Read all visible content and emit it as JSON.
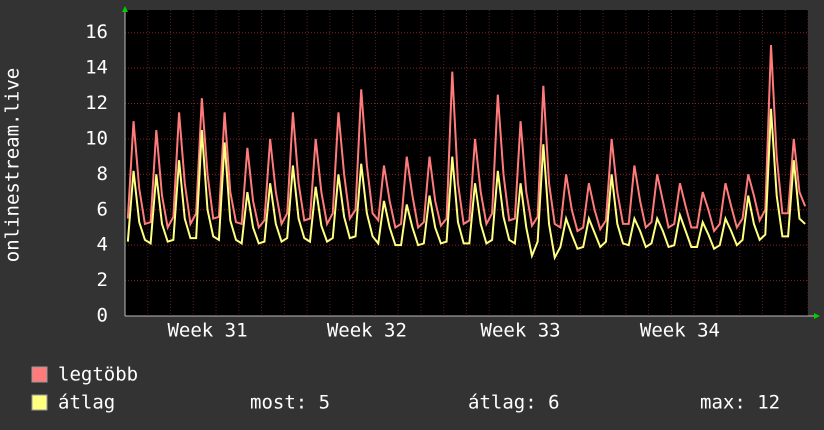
{
  "chart_data": {
    "type": "line",
    "y_label": "onlinestream.live",
    "categories": [
      null,
      null,
      null,
      null,
      null,
      null,
      null,
      null,
      null,
      null,
      null,
      null,
      null,
      null,
      "Week 31",
      null,
      null,
      null,
      null,
      null,
      null,
      null,
      null,
      null,
      null,
      null,
      null,
      null,
      null,
      null,
      null,
      null,
      null,
      null,
      null,
      null,
      null,
      null,
      null,
      null,
      null,
      null,
      "Week 32",
      null,
      null,
      null,
      null,
      null,
      null,
      null,
      null,
      null,
      null,
      null,
      null,
      null,
      null,
      null,
      null,
      null,
      null,
      null,
      null,
      null,
      null,
      null,
      null,
      null,
      null,
      "Week 33",
      null,
      null,
      null,
      null,
      null,
      null,
      null,
      null,
      null,
      null,
      null,
      null,
      null,
      null,
      null,
      null,
      null,
      null,
      null,
      null,
      null,
      null,
      null,
      null,
      null,
      null,
      null,
      "Week 34",
      null,
      null,
      null,
      null,
      null,
      null,
      null,
      null,
      null,
      null,
      null,
      null,
      null,
      null,
      null,
      null,
      null,
      null,
      null,
      null,
      null,
      null
    ],
    "series": [
      {
        "name": "legtöbb",
        "color": "#ff7b7b",
        "values": [
          5.5,
          11,
          7.2,
          5.2,
          5.3,
          10.5,
          6.8,
          5.0,
          5.6,
          11.5,
          7.5,
          5.2,
          5.8,
          12.3,
          8,
          5.5,
          5.6,
          11.5,
          7,
          5.3,
          5.2,
          9.5,
          6.5,
          5,
          5.4,
          10,
          7,
          5.2,
          5.8,
          11.5,
          7.5,
          5.4,
          5.5,
          10,
          7,
          5.2,
          5.8,
          11.5,
          8,
          5.5,
          6,
          12.8,
          8.5,
          5.8,
          5.4,
          8.5,
          6.5,
          5,
          5.2,
          9,
          6.8,
          5,
          5.3,
          9,
          6.5,
          5.1,
          5.5,
          13.8,
          7.5,
          5.2,
          5.4,
          10,
          7,
          5.2,
          5.8,
          12.5,
          8,
          5.4,
          5.5,
          11,
          7,
          5.1,
          5.6,
          13,
          7.5,
          5.2,
          5,
          8,
          6,
          4.8,
          5,
          7.5,
          6,
          4.9,
          5.4,
          10,
          7,
          5.2,
          5.2,
          8.5,
          6.5,
          5,
          5.3,
          8,
          6.5,
          5,
          5.2,
          7.5,
          6.2,
          5,
          5,
          7,
          6,
          4.8,
          5.2,
          7.5,
          6.2,
          5,
          5.5,
          8,
          6.8,
          5.4,
          6,
          15.3,
          9,
          5.8,
          5.8,
          10,
          7,
          6.2
        ]
      },
      {
        "name": "átlag",
        "color": "#ffff80",
        "values": [
          4.2,
          8.2,
          5.3,
          4.3,
          4.1,
          8,
          5.2,
          4.2,
          4.3,
          8.8,
          5.5,
          4.4,
          4.4,
          10.5,
          6,
          4.5,
          4.3,
          9.8,
          5.4,
          4.3,
          4.1,
          7,
          5,
          4.1,
          4.2,
          7.5,
          5.2,
          4.2,
          4.4,
          8.5,
          5.5,
          4.4,
          4.2,
          7.3,
          5.1,
          4.2,
          4.4,
          8,
          5.6,
          4.4,
          4.5,
          8.6,
          5.8,
          4.5,
          4.1,
          6.5,
          5,
          4,
          4,
          6.3,
          5,
          4,
          4.1,
          6.8,
          5,
          4.1,
          4.2,
          9,
          5.3,
          4.1,
          4.1,
          7.5,
          5.2,
          4.1,
          4.3,
          8.2,
          5.6,
          4.3,
          4.1,
          7.5,
          5,
          3.4,
          4.2,
          9.7,
          5.2,
          3.3,
          3.9,
          5.5,
          4.6,
          3.8,
          3.9,
          5.5,
          4.7,
          3.9,
          4.2,
          8,
          5.2,
          4.1,
          4,
          5.5,
          4.8,
          3.9,
          4.1,
          5.5,
          4.8,
          3.9,
          4,
          5.7,
          4.8,
          3.9,
          3.9,
          5.3,
          4.6,
          3.8,
          4,
          5.5,
          4.8,
          4,
          4.3,
          6.8,
          5.2,
          4.3,
          4.6,
          11.7,
          6.8,
          4.5,
          4.5,
          8.8,
          5.5,
          5.2
        ]
      }
    ],
    "ylim": [
      0,
      17
    ],
    "yticks": [
      0,
      2,
      4,
      6,
      8,
      10,
      12,
      14,
      16
    ],
    "grid": true,
    "stats": [
      "most: 5",
      "átlag: 6",
      "max: 12"
    ]
  }
}
